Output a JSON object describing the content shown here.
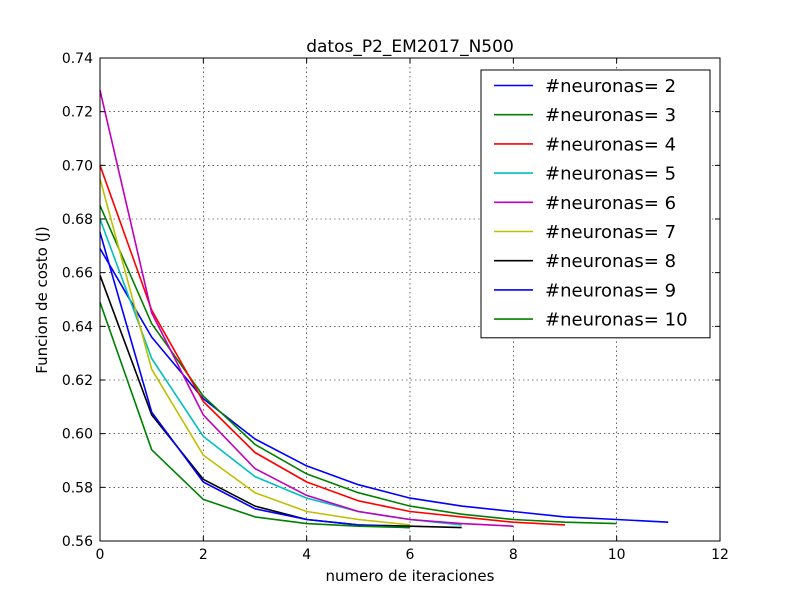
{
  "chart_data": {
    "type": "line",
    "title": "datos_P2_EM2017_N500",
    "xlabel": "numero de iteraciones",
    "ylabel": "Funcion de costo (J)",
    "xlim": [
      0,
      12
    ],
    "ylim": [
      0.56,
      0.74
    ],
    "xticks": [
      "0",
      "2",
      "4",
      "6",
      "8",
      "10",
      "12"
    ],
    "yticks": [
      "0.56",
      "0.58",
      "0.60",
      "0.62",
      "0.64",
      "0.66",
      "0.68",
      "0.70",
      "0.72",
      "0.74"
    ],
    "grid": true,
    "legend_position": "top-right",
    "series": [
      {
        "name": "#neuronas= 2",
        "color": "#0000ff",
        "x": [
          0,
          1,
          2,
          3,
          4,
          5,
          6,
          7,
          8,
          9,
          10,
          11
        ],
        "y": [
          0.669,
          0.636,
          0.613,
          0.598,
          0.588,
          0.581,
          0.576,
          0.573,
          0.571,
          0.569,
          0.568,
          0.567
        ]
      },
      {
        "name": "#neuronas= 3",
        "color": "#008000",
        "x": [
          0,
          1,
          2,
          3,
          4,
          5,
          6,
          7,
          8,
          9,
          10
        ],
        "y": [
          0.685,
          0.641,
          0.614,
          0.596,
          0.585,
          0.578,
          0.573,
          0.57,
          0.568,
          0.567,
          0.5665
        ]
      },
      {
        "name": "#neuronas= 4",
        "color": "#ff0000",
        "x": [
          0,
          1,
          2,
          3,
          4,
          5,
          6,
          7,
          8,
          9
        ],
        "y": [
          0.7,
          0.646,
          0.612,
          0.593,
          0.582,
          0.575,
          0.571,
          0.569,
          0.567,
          0.566
        ]
      },
      {
        "name": "#neuronas= 5",
        "color": "#00bfbf",
        "x": [
          0,
          1,
          2,
          3,
          4,
          5,
          6,
          7
        ],
        "y": [
          0.68,
          0.628,
          0.599,
          0.584,
          0.576,
          0.571,
          0.568,
          0.566
        ]
      },
      {
        "name": "#neuronas= 6",
        "color": "#bf00bf",
        "x": [
          0,
          1,
          2,
          3,
          4,
          5,
          6,
          7,
          8
        ],
        "y": [
          0.728,
          0.645,
          0.607,
          0.587,
          0.577,
          0.571,
          0.568,
          0.5665,
          0.5655
        ]
      },
      {
        "name": "#neuronas= 7",
        "color": "#bfbf00",
        "x": [
          0,
          1,
          2,
          3,
          4,
          5,
          6
        ],
        "y": [
          0.695,
          0.624,
          0.592,
          0.578,
          0.571,
          0.568,
          0.566
        ]
      },
      {
        "name": "#neuronas= 8",
        "color": "#000000",
        "x": [
          0,
          1,
          2,
          3,
          4,
          5,
          6,
          7
        ],
        "y": [
          0.659,
          0.607,
          0.583,
          0.573,
          0.568,
          0.566,
          0.5655,
          0.565
        ]
      },
      {
        "name": "#neuronas= 9",
        "color": "#0000ff",
        "x": [
          0,
          1,
          2,
          3,
          4,
          5,
          6
        ],
        "y": [
          0.675,
          0.608,
          0.582,
          0.572,
          0.568,
          0.566,
          0.565
        ]
      },
      {
        "name": "#neuronas= 10",
        "color": "#008000",
        "x": [
          0,
          1,
          2,
          3,
          4,
          5,
          6
        ],
        "y": [
          0.649,
          0.594,
          0.5755,
          0.569,
          0.5665,
          0.5655,
          0.565
        ]
      }
    ]
  }
}
